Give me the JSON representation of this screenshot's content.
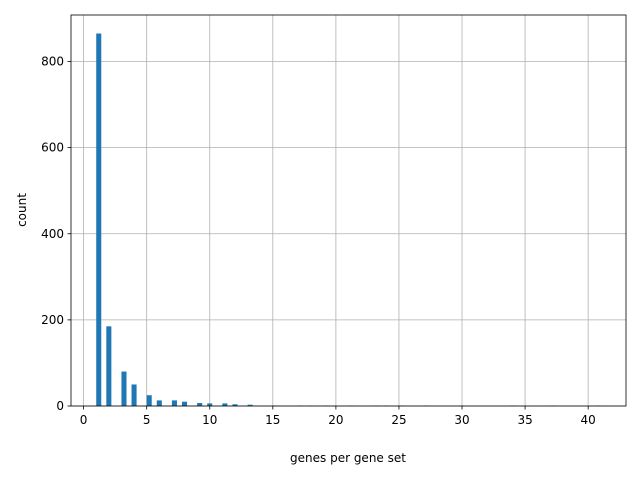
{
  "chart_data": {
    "type": "histogram",
    "xlabel": "genes per gene set",
    "ylabel": "count",
    "color": "#1f77b4",
    "grid": true,
    "bins": [
      1,
      1.4,
      1.8,
      2.2,
      2.6,
      3,
      3.4,
      3.8,
      4.2,
      4.6,
      5,
      5.4,
      5.8,
      6.2,
      6.6,
      7,
      7.4,
      7.8,
      8.2,
      8.6,
      9,
      9.4,
      9.8,
      10.2,
      10.6,
      11,
      11.4,
      11.8,
      12.2,
      12.6,
      13,
      13.4,
      13.8,
      14.2,
      14.6,
      15,
      15.4,
      15.8,
      16.2,
      16.6,
      17,
      17.4,
      17.8,
      18.2,
      18.6,
      19,
      19.4,
      19.8,
      20.2,
      20.6,
      21,
      21.4,
      21.8,
      22.2,
      22.6,
      23,
      23.4,
      23.8,
      24.2,
      24.6,
      25,
      25.4,
      25.8,
      26.2,
      26.6,
      27,
      27.4,
      27.8,
      28.2,
      28.6,
      29,
      29.4,
      29.8,
      30.2,
      30.6,
      31,
      31.4,
      31.8,
      32.2,
      32.6,
      33,
      33.4,
      33.8,
      34.2,
      34.6,
      35,
      35.4,
      35.8,
      36.2,
      36.6,
      37,
      37.4,
      37.8,
      38.2,
      38.6,
      39,
      39.4,
      39.8,
      40.2,
      40.6,
      41
    ],
    "values": [
      865,
      0,
      185,
      0,
      0,
      80,
      0,
      50,
      0,
      0,
      25,
      0,
      13,
      0,
      0,
      13,
      0,
      10,
      0,
      0,
      7,
      0,
      6,
      0,
      0,
      6,
      0,
      4,
      0,
      0,
      3,
      0,
      0,
      0,
      0,
      1,
      0,
      0,
      0,
      0,
      1,
      0,
      1,
      0,
      0,
      1,
      0,
      0,
      0,
      0,
      1,
      0,
      0,
      0,
      0,
      1,
      0,
      1,
      0,
      0,
      1,
      0,
      0,
      0,
      0,
      1,
      0,
      0,
      0,
      0,
      0,
      0,
      1,
      0,
      0,
      0,
      0,
      0,
      0,
      0,
      0,
      0,
      1,
      0,
      0,
      0,
      0,
      0,
      0,
      0,
      1,
      0,
      0,
      0,
      0,
      0,
      0,
      0,
      0,
      1
    ],
    "xlim": [
      -1,
      43
    ],
    "xticks": [
      0,
      5,
      10,
      15,
      20,
      25,
      30,
      35,
      40
    ],
    "ylim": [
      0,
      908
    ],
    "yticks": [
      0,
      200,
      400,
      600,
      800
    ]
  }
}
